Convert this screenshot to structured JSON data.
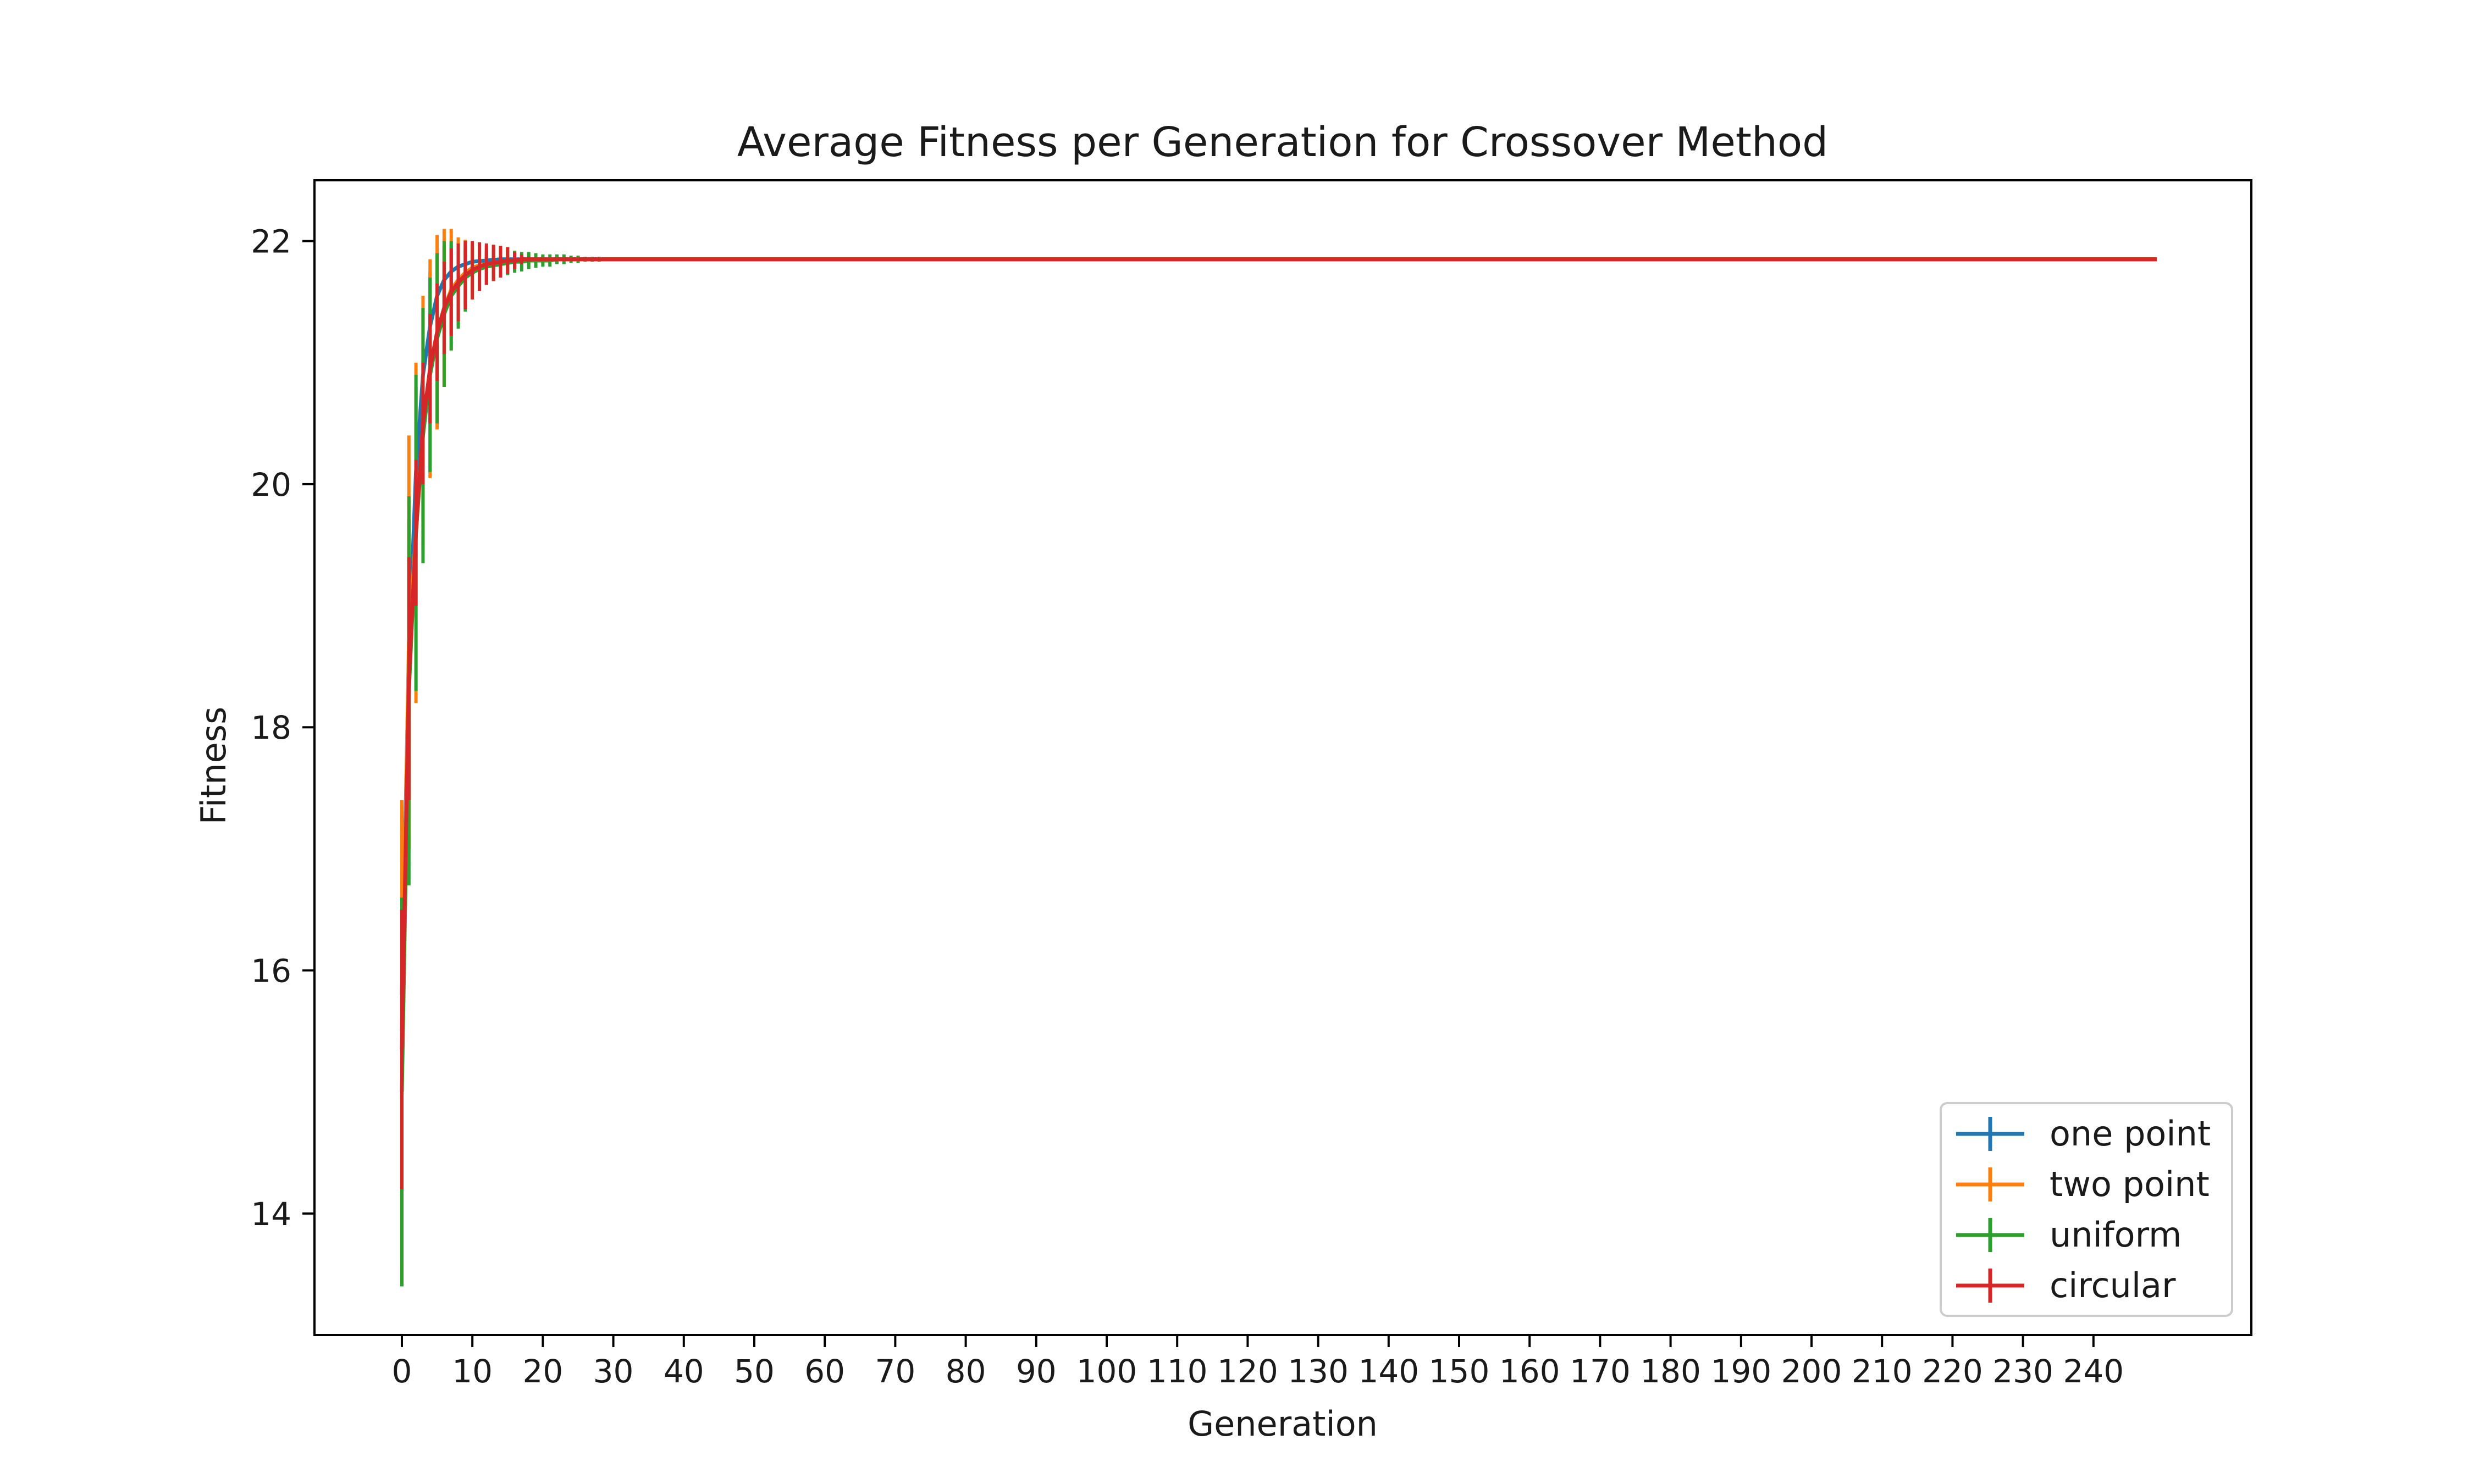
{
  "chart_data": {
    "type": "line",
    "title": "Average Fitness per Generation for Crossover Method",
    "xlabel": "Generation",
    "ylabel": "Fitness",
    "xlim": [
      -12.4,
      262.4
    ],
    "ylim": [
      13.0,
      22.5
    ],
    "xticks": [
      0,
      10,
      20,
      30,
      40,
      50,
      60,
      70,
      80,
      90,
      100,
      110,
      120,
      130,
      140,
      150,
      160,
      170,
      180,
      190,
      200,
      210,
      220,
      230,
      240
    ],
    "yticks": [
      14,
      16,
      18,
      20,
      22
    ],
    "grid": false,
    "legend_position": "lower-right",
    "x_end": 249,
    "plateau": 21.85,
    "series": [
      {
        "name": "one point",
        "color": "#1f77b4",
        "early": [
          {
            "x": 0,
            "y": 15.8,
            "err": 0.8
          },
          {
            "x": 1,
            "y": 18.6,
            "err": 1.1
          },
          {
            "x": 2,
            "y": 20.1,
            "err": 0.7
          },
          {
            "x": 3,
            "y": 20.9,
            "err": 0.55
          },
          {
            "x": 4,
            "y": 21.3,
            "err": 0.45
          },
          {
            "x": 5,
            "y": 21.55,
            "err": 0.35
          },
          {
            "x": 6,
            "y": 21.68,
            "err": 0.28
          },
          {
            "x": 7,
            "y": 21.75,
            "err": 0.22
          },
          {
            "x": 8,
            "y": 21.79,
            "err": 0.17
          },
          {
            "x": 9,
            "y": 21.81,
            "err": 0.13
          },
          {
            "x": 10,
            "y": 21.83,
            "err": 0.1
          },
          {
            "x": 12,
            "y": 21.84,
            "err": 0.06
          },
          {
            "x": 14,
            "y": 21.85,
            "err": 0.03
          },
          {
            "x": 16,
            "y": 21.85,
            "err": 0.015
          }
        ]
      },
      {
        "name": "two point",
        "color": "#ff7f0e",
        "early": [
          {
            "x": 0,
            "y": 15.5,
            "err": 1.9
          },
          {
            "x": 1,
            "y": 18.7,
            "err": 1.7
          },
          {
            "x": 2,
            "y": 19.6,
            "err": 1.4
          },
          {
            "x": 3,
            "y": 20.5,
            "err": 1.05
          },
          {
            "x": 4,
            "y": 20.95,
            "err": 0.9
          },
          {
            "x": 5,
            "y": 21.25,
            "err": 0.8
          },
          {
            "x": 6,
            "y": 21.45,
            "err": 0.65
          },
          {
            "x": 7,
            "y": 21.6,
            "err": 0.5
          },
          {
            "x": 8,
            "y": 21.68,
            "err": 0.35
          },
          {
            "x": 9,
            "y": 21.74,
            "err": 0.27
          },
          {
            "x": 10,
            "y": 21.78,
            "err": 0.2
          },
          {
            "x": 11,
            "y": 21.8,
            "err": 0.17
          },
          {
            "x": 12,
            "y": 21.81,
            "err": 0.15
          },
          {
            "x": 13,
            "y": 21.82,
            "err": 0.14
          },
          {
            "x": 14,
            "y": 21.83,
            "err": 0.13
          },
          {
            "x": 15,
            "y": 21.84,
            "err": 0.11
          },
          {
            "x": 16,
            "y": 21.84,
            "err": 0.08
          },
          {
            "x": 17,
            "y": 21.85,
            "err": 0.06
          },
          {
            "x": 18,
            "y": 21.85,
            "err": 0.04
          },
          {
            "x": 20,
            "y": 21.85,
            "err": 0.03
          },
          {
            "x": 22,
            "y": 21.85,
            "err": 0.02
          }
        ]
      },
      {
        "name": "uniform",
        "color": "#2ca02c",
        "early": [
          {
            "x": 0,
            "y": 15.0,
            "err": 1.6
          },
          {
            "x": 1,
            "y": 18.3,
            "err": 1.6
          },
          {
            "x": 2,
            "y": 19.6,
            "err": 1.3
          },
          {
            "x": 3,
            "y": 20.4,
            "err": 1.05
          },
          {
            "x": 4,
            "y": 20.9,
            "err": 0.8
          },
          {
            "x": 5,
            "y": 21.2,
            "err": 0.7
          },
          {
            "x": 6,
            "y": 21.4,
            "err": 0.6
          },
          {
            "x": 7,
            "y": 21.55,
            "err": 0.45
          },
          {
            "x": 8,
            "y": 21.63,
            "err": 0.35
          },
          {
            "x": 9,
            "y": 21.7,
            "err": 0.28
          },
          {
            "x": 10,
            "y": 21.74,
            "err": 0.22
          },
          {
            "x": 11,
            "y": 21.77,
            "err": 0.18
          },
          {
            "x": 12,
            "y": 21.79,
            "err": 0.15
          },
          {
            "x": 13,
            "y": 21.8,
            "err": 0.13
          },
          {
            "x": 14,
            "y": 21.81,
            "err": 0.11
          },
          {
            "x": 15,
            "y": 21.82,
            "err": 0.1
          },
          {
            "x": 16,
            "y": 21.83,
            "err": 0.09
          },
          {
            "x": 17,
            "y": 21.83,
            "err": 0.08
          },
          {
            "x": 18,
            "y": 21.84,
            "err": 0.07
          },
          {
            "x": 19,
            "y": 21.84,
            "err": 0.06
          },
          {
            "x": 20,
            "y": 21.84,
            "err": 0.05
          },
          {
            "x": 21,
            "y": 21.84,
            "err": 0.05
          },
          {
            "x": 22,
            "y": 21.85,
            "err": 0.04
          },
          {
            "x": 23,
            "y": 21.85,
            "err": 0.04
          },
          {
            "x": 24,
            "y": 21.85,
            "err": 0.03
          },
          {
            "x": 25,
            "y": 21.85,
            "err": 0.03
          },
          {
            "x": 26,
            "y": 21.85,
            "err": 0.02
          },
          {
            "x": 27,
            "y": 21.85,
            "err": 0.02
          },
          {
            "x": 28,
            "y": 21.85,
            "err": 0.02
          }
        ]
      },
      {
        "name": "circular",
        "color": "#d62728",
        "early": [
          {
            "x": 0,
            "y": 15.35,
            "err": 1.15
          },
          {
            "x": 1,
            "y": 18.4,
            "err": 1.0
          },
          {
            "x": 2,
            "y": 19.6,
            "err": 0.6
          },
          {
            "x": 3,
            "y": 20.5,
            "err": 0.5
          },
          {
            "x": 4,
            "y": 20.95,
            "err": 0.45
          },
          {
            "x": 5,
            "y": 21.25,
            "err": 0.4
          },
          {
            "x": 6,
            "y": 21.45,
            "err": 0.38
          },
          {
            "x": 7,
            "y": 21.58,
            "err": 0.36
          },
          {
            "x": 8,
            "y": 21.66,
            "err": 0.32
          },
          {
            "x": 9,
            "y": 21.72,
            "err": 0.28
          },
          {
            "x": 10,
            "y": 21.76,
            "err": 0.24
          },
          {
            "x": 11,
            "y": 21.79,
            "err": 0.2
          },
          {
            "x": 12,
            "y": 21.81,
            "err": 0.17
          },
          {
            "x": 13,
            "y": 21.82,
            "err": 0.15
          },
          {
            "x": 14,
            "y": 21.83,
            "err": 0.13
          },
          {
            "x": 15,
            "y": 21.84,
            "err": 0.11
          },
          {
            "x": 16,
            "y": 21.84,
            "err": 0.07
          },
          {
            "x": 17,
            "y": 21.85,
            "err": 0.04
          },
          {
            "x": 18,
            "y": 21.85,
            "err": 0.02
          }
        ]
      }
    ]
  }
}
